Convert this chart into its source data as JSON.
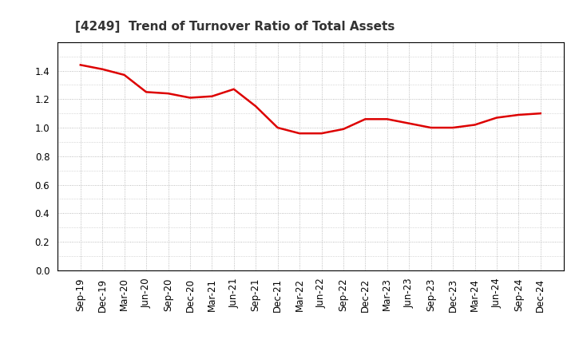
{
  "title": "[4249]  Trend of Turnover Ratio of Total Assets",
  "x_labels": [
    "Sep-19",
    "Dec-19",
    "Mar-20",
    "Jun-20",
    "Sep-20",
    "Dec-20",
    "Mar-21",
    "Jun-21",
    "Sep-21",
    "Dec-21",
    "Mar-22",
    "Jun-22",
    "Sep-22",
    "Dec-22",
    "Mar-23",
    "Jun-23",
    "Sep-23",
    "Dec-23",
    "Mar-24",
    "Jun-24",
    "Sep-24",
    "Dec-24"
  ],
  "y_values": [
    1.44,
    1.41,
    1.37,
    1.25,
    1.24,
    1.21,
    1.22,
    1.27,
    1.15,
    1.0,
    0.96,
    0.96,
    0.99,
    1.06,
    1.06,
    1.03,
    1.0,
    1.0,
    1.02,
    1.07,
    1.09,
    1.1
  ],
  "line_color": "#dd0000",
  "line_width": 1.8,
  "ylim": [
    0.0,
    1.6
  ],
  "yticks": [
    0.0,
    0.2,
    0.4,
    0.6,
    0.8,
    1.0,
    1.2,
    1.4
  ],
  "bg_color": "#ffffff",
  "grid_color": "#aaaaaa",
  "title_fontsize": 11,
  "tick_fontsize": 8.5
}
